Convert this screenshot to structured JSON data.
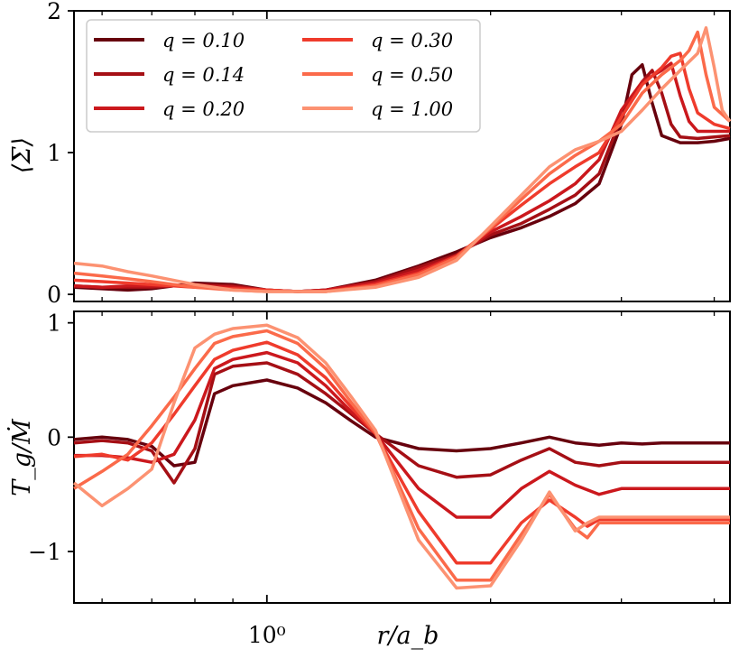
{
  "chart_data": [
    {
      "type": "line",
      "panel": "top",
      "ylabel": "⟨Σ⟩",
      "ylim": [
        -0.05,
        2.0
      ],
      "yticks": [
        0,
        1,
        2
      ],
      "ytick_labels": [
        "0",
        "1",
        "2"
      ],
      "xscale": "log",
      "xlim": [
        0.55,
        4.2
      ],
      "legend": {
        "placement": "top-left",
        "ncol": 2
      },
      "grid": false,
      "series": [
        {
          "name": "q = 0.10",
          "color": "#67000d",
          "x": [
            0.55,
            0.6,
            0.65,
            0.7,
            0.8,
            0.9,
            1.0,
            1.1,
            1.2,
            1.4,
            1.6,
            1.8,
            2.0,
            2.2,
            2.4,
            2.6,
            2.8,
            3.0,
            3.1,
            3.2,
            3.3,
            3.4,
            3.6,
            3.8,
            4.0,
            4.2
          ],
          "y": [
            0.05,
            0.04,
            0.03,
            0.04,
            0.08,
            0.07,
            0.03,
            0.02,
            0.03,
            0.1,
            0.2,
            0.3,
            0.4,
            0.47,
            0.55,
            0.64,
            0.78,
            1.2,
            1.55,
            1.62,
            1.35,
            1.12,
            1.07,
            1.07,
            1.08,
            1.1
          ]
        },
        {
          "name": "q = 0.14",
          "color": "#a50f15",
          "x": [
            0.55,
            0.6,
            0.65,
            0.7,
            0.8,
            0.9,
            1.0,
            1.1,
            1.2,
            1.4,
            1.6,
            1.8,
            2.0,
            2.2,
            2.4,
            2.6,
            2.8,
            3.0,
            3.2,
            3.3,
            3.4,
            3.5,
            3.6,
            3.8,
            4.0,
            4.2
          ],
          "y": [
            0.06,
            0.05,
            0.05,
            0.05,
            0.07,
            0.06,
            0.03,
            0.02,
            0.03,
            0.09,
            0.19,
            0.28,
            0.42,
            0.5,
            0.6,
            0.7,
            0.85,
            1.25,
            1.5,
            1.58,
            1.42,
            1.2,
            1.11,
            1.1,
            1.11,
            1.12
          ]
        },
        {
          "name": "q = 0.20",
          "color": "#cb181d",
          "x": [
            0.55,
            0.6,
            0.65,
            0.7,
            0.8,
            0.9,
            1.0,
            1.1,
            1.2,
            1.4,
            1.6,
            1.8,
            2.0,
            2.2,
            2.4,
            2.6,
            2.8,
            3.0,
            3.2,
            3.4,
            3.5,
            3.6,
            3.7,
            3.8,
            4.0,
            4.2
          ],
          "y": [
            0.06,
            0.05,
            0.06,
            0.06,
            0.06,
            0.05,
            0.03,
            0.02,
            0.03,
            0.08,
            0.17,
            0.27,
            0.44,
            0.55,
            0.66,
            0.78,
            0.95,
            1.3,
            1.5,
            1.58,
            1.63,
            1.4,
            1.22,
            1.15,
            1.15,
            1.15
          ]
        },
        {
          "name": "q = 0.30",
          "color": "#ef3b2c",
          "x": [
            0.55,
            0.6,
            0.65,
            0.7,
            0.8,
            0.9,
            1.0,
            1.1,
            1.2,
            1.4,
            1.6,
            1.8,
            2.0,
            2.2,
            2.4,
            2.6,
            2.8,
            3.0,
            3.2,
            3.4,
            3.5,
            3.6,
            3.7,
            3.8,
            4.0,
            4.2
          ],
          "y": [
            0.1,
            0.09,
            0.08,
            0.07,
            0.05,
            0.04,
            0.03,
            0.02,
            0.02,
            0.07,
            0.15,
            0.27,
            0.46,
            0.63,
            0.78,
            0.9,
            1.0,
            1.25,
            1.48,
            1.6,
            1.68,
            1.7,
            1.45,
            1.28,
            1.2,
            1.17
          ]
        },
        {
          "name": "q = 0.50",
          "color": "#fb6a4a",
          "x": [
            0.55,
            0.6,
            0.65,
            0.7,
            0.8,
            0.9,
            1.0,
            1.1,
            1.2,
            1.4,
            1.6,
            1.8,
            2.0,
            2.2,
            2.4,
            2.6,
            2.8,
            3.0,
            3.2,
            3.4,
            3.6,
            3.7,
            3.8,
            3.9,
            4.0,
            4.2
          ],
          "y": [
            0.15,
            0.13,
            0.11,
            0.09,
            0.05,
            0.03,
            0.02,
            0.02,
            0.02,
            0.06,
            0.14,
            0.26,
            0.47,
            0.67,
            0.85,
            0.98,
            1.08,
            1.2,
            1.42,
            1.55,
            1.65,
            1.72,
            1.85,
            1.55,
            1.32,
            1.22
          ]
        },
        {
          "name": "q = 1.00",
          "color": "#fc9272",
          "x": [
            0.55,
            0.6,
            0.65,
            0.7,
            0.8,
            0.9,
            1.0,
            1.1,
            1.2,
            1.4,
            1.6,
            1.8,
            2.0,
            2.2,
            2.4,
            2.6,
            2.8,
            3.0,
            3.2,
            3.4,
            3.6,
            3.8,
            3.9,
            4.0,
            4.1,
            4.2
          ],
          "y": [
            0.22,
            0.2,
            0.16,
            0.13,
            0.07,
            0.03,
            0.02,
            0.02,
            0.02,
            0.05,
            0.12,
            0.24,
            0.48,
            0.7,
            0.9,
            1.02,
            1.08,
            1.15,
            1.3,
            1.45,
            1.58,
            1.7,
            1.88,
            1.6,
            1.3,
            1.22
          ]
        }
      ]
    },
    {
      "type": "line",
      "panel": "bottom",
      "ylabel": "T_g/Ṁ",
      "xlabel": "r/a_b",
      "ylim": [
        -1.45,
        1.1
      ],
      "yticks": [
        -1,
        0,
        1
      ],
      "ytick_labels": [
        "−1",
        "0",
        "1"
      ],
      "xscale": "log",
      "xlim": [
        0.55,
        4.2
      ],
      "xticks": [
        1
      ],
      "xtick_labels": [
        "10⁰"
      ],
      "grid": false,
      "series": [
        {
          "name": "q = 0.10",
          "color": "#67000d",
          "x": [
            0.55,
            0.6,
            0.65,
            0.7,
            0.75,
            0.8,
            0.85,
            0.9,
            1.0,
            1.1,
            1.2,
            1.3,
            1.4,
            1.6,
            1.8,
            2.0,
            2.2,
            2.4,
            2.6,
            2.8,
            3.0,
            3.2,
            3.4,
            3.6,
            4.0,
            4.2
          ],
          "y": [
            -0.02,
            0.0,
            -0.02,
            -0.08,
            -0.25,
            -0.22,
            0.38,
            0.45,
            0.5,
            0.43,
            0.3,
            0.14,
            0.0,
            -0.1,
            -0.12,
            -0.1,
            -0.05,
            0.0,
            -0.05,
            -0.07,
            -0.05,
            -0.06,
            -0.05,
            -0.05,
            -0.05,
            -0.05
          ]
        },
        {
          "name": "q = 0.14",
          "color": "#a50f15",
          "x": [
            0.55,
            0.6,
            0.65,
            0.7,
            0.75,
            0.8,
            0.85,
            0.9,
            1.0,
            1.1,
            1.2,
            1.3,
            1.4,
            1.6,
            1.8,
            2.0,
            2.2,
            2.4,
            2.6,
            2.8,
            3.0,
            3.2,
            3.4,
            3.6,
            4.0,
            4.2
          ],
          "y": [
            -0.05,
            -0.03,
            -0.05,
            -0.12,
            -0.4,
            -0.1,
            0.55,
            0.62,
            0.65,
            0.55,
            0.38,
            0.2,
            0.03,
            -0.25,
            -0.35,
            -0.33,
            -0.2,
            -0.1,
            -0.22,
            -0.25,
            -0.22,
            -0.22,
            -0.22,
            -0.22,
            -0.22,
            -0.22
          ]
        },
        {
          "name": "q = 0.20",
          "color": "#cb181d",
          "x": [
            0.55,
            0.6,
            0.65,
            0.7,
            0.75,
            0.8,
            0.85,
            0.9,
            1.0,
            1.1,
            1.2,
            1.3,
            1.4,
            1.6,
            1.8,
            2.0,
            2.2,
            2.4,
            2.6,
            2.8,
            3.0,
            3.2,
            3.4,
            3.6,
            4.0,
            4.2
          ],
          "y": [
            -0.16,
            -0.16,
            -0.18,
            -0.22,
            -0.15,
            0.15,
            0.6,
            0.68,
            0.74,
            0.65,
            0.45,
            0.22,
            0.03,
            -0.45,
            -0.7,
            -0.7,
            -0.45,
            -0.3,
            -0.42,
            -0.5,
            -0.45,
            -0.45,
            -0.45,
            -0.45,
            -0.45,
            -0.45
          ]
        },
        {
          "name": "q = 0.30",
          "color": "#ef3b2c",
          "x": [
            0.55,
            0.6,
            0.65,
            0.7,
            0.75,
            0.8,
            0.85,
            0.9,
            1.0,
            1.1,
            1.2,
            1.3,
            1.4,
            1.6,
            1.8,
            2.0,
            2.2,
            2.4,
            2.6,
            2.7,
            2.8,
            2.9,
            3.0,
            3.2,
            3.6,
            4.2
          ],
          "y": [
            -0.17,
            -0.15,
            -0.2,
            -0.05,
            0.2,
            0.45,
            0.68,
            0.76,
            0.83,
            0.72,
            0.52,
            0.26,
            0.03,
            -0.65,
            -1.1,
            -1.1,
            -0.75,
            -0.55,
            -0.7,
            -0.78,
            -0.72,
            -0.72,
            -0.72,
            -0.72,
            -0.72,
            -0.72
          ]
        },
        {
          "name": "q = 0.50",
          "color": "#fb6a4a",
          "x": [
            0.55,
            0.6,
            0.65,
            0.7,
            0.75,
            0.8,
            0.85,
            0.9,
            1.0,
            1.1,
            1.2,
            1.3,
            1.4,
            1.6,
            1.8,
            2.0,
            2.2,
            2.4,
            2.6,
            2.7,
            2.8,
            2.9,
            3.0,
            3.2,
            3.6,
            4.2
          ],
          "y": [
            -0.45,
            -0.3,
            -0.15,
            0.1,
            0.35,
            0.6,
            0.82,
            0.88,
            0.93,
            0.82,
            0.6,
            0.3,
            0.04,
            -0.8,
            -1.25,
            -1.25,
            -0.85,
            -0.5,
            -0.8,
            -0.88,
            -0.75,
            -0.75,
            -0.75,
            -0.75,
            -0.75,
            -0.75
          ]
        },
        {
          "name": "q = 1.00",
          "color": "#fc9272",
          "x": [
            0.55,
            0.6,
            0.65,
            0.7,
            0.75,
            0.8,
            0.85,
            0.9,
            1.0,
            1.1,
            1.2,
            1.3,
            1.4,
            1.6,
            1.8,
            2.0,
            2.2,
            2.4,
            2.6,
            2.7,
            2.8,
            2.9,
            3.0,
            3.2,
            3.6,
            4.2
          ],
          "y": [
            -0.4,
            -0.6,
            -0.45,
            -0.28,
            0.3,
            0.78,
            0.9,
            0.95,
            0.98,
            0.87,
            0.65,
            0.35,
            0.06,
            -0.9,
            -1.32,
            -1.3,
            -0.9,
            -0.48,
            -0.82,
            -0.75,
            -0.7,
            -0.7,
            -0.7,
            -0.7,
            -0.7,
            -0.7
          ]
        }
      ]
    }
  ]
}
